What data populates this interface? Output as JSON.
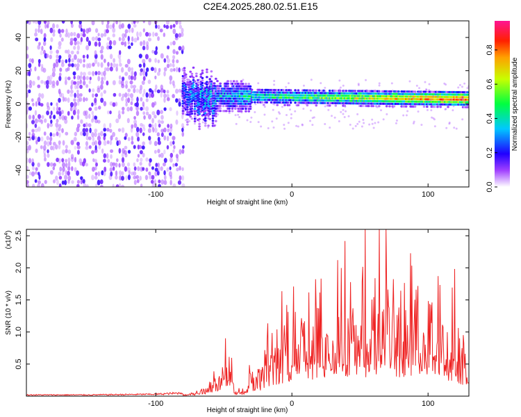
{
  "title": "C2E4.2025.280.02.51.E15",
  "chart_data": [
    {
      "type": "heatmap",
      "name": "spectrogram",
      "xlabel": "Height of straight line (km)",
      "ylabel": "Frequency (Hz)",
      "xlim": [
        -195,
        130
      ],
      "ylim": [
        -50,
        50
      ],
      "xticks": [
        -100,
        0,
        100
      ],
      "yticks": [
        -40,
        -20,
        0,
        20,
        40
      ],
      "colorbar": {
        "label": "Normalized spectral amplitude",
        "range": [
          0,
          0.97
        ],
        "ticks": [
          0.0,
          0.2,
          0.4,
          0.6,
          0.8
        ],
        "tick_labels": [
          "0.0",
          "0.2",
          "0.4",
          "0.6",
          "0.8"
        ],
        "colormap": [
          "#ffffff",
          "#8800ff",
          "#0000ff",
          "#00e5ff",
          "#00ff00",
          "#ffff00",
          "#ff8000",
          "#ff0000",
          "#ff1493"
        ]
      },
      "features": [
        {
          "label": "noise",
          "x_range": [
            -195,
            -80
          ],
          "freq_range": [
            -50,
            50
          ],
          "amplitude": 0.05
        },
        {
          "label": "signal",
          "x_range": [
            -80,
            130
          ],
          "freq_start": 5,
          "freq_end": 3,
          "amplitude": 0.9
        }
      ]
    },
    {
      "type": "line",
      "name": "snr",
      "xlabel": "Height of straight line (km)",
      "ylabel": "SNR (10 * v/v)",
      "y_scale_label": "(x10",
      "y_scale_exp": "4",
      "xlim": [
        -195,
        130
      ],
      "ylim": [
        0,
        2.6
      ],
      "xticks": [
        -100,
        0,
        100
      ],
      "yticks": [
        0.5,
        1.0,
        1.5,
        2.0,
        2.5
      ],
      "ytick_labels": [
        "0.5",
        "1.0",
        "1.5",
        "2.0",
        "2.5"
      ],
      "color": "#ee2222",
      "x": [
        -195,
        -150,
        -100,
        -80,
        -70,
        -60,
        -55,
        -50,
        -47,
        -45,
        -42,
        -40,
        -35,
        -30,
        -25,
        -20,
        -15,
        -10,
        -5,
        0,
        10,
        20,
        30,
        35,
        40,
        50,
        60,
        70,
        75,
        80,
        90,
        100,
        110,
        115,
        120,
        125,
        130
      ],
      "y": [
        0.02,
        0.02,
        0.03,
        0.05,
        0.1,
        0.3,
        0.5,
        0.8,
        1.05,
        0.6,
        0.2,
        0.1,
        0.15,
        0.6,
        0.4,
        0.9,
        1.1,
        1.2,
        1.35,
        1.6,
        1.5,
        1.7,
        1.9,
        2.6,
        2.0,
        1.9,
        2.05,
        2.6,
        2.0,
        1.95,
        2.1,
        1.85,
        2.1,
        1.5,
        1.7,
        0.9,
        1.4
      ]
    }
  ]
}
